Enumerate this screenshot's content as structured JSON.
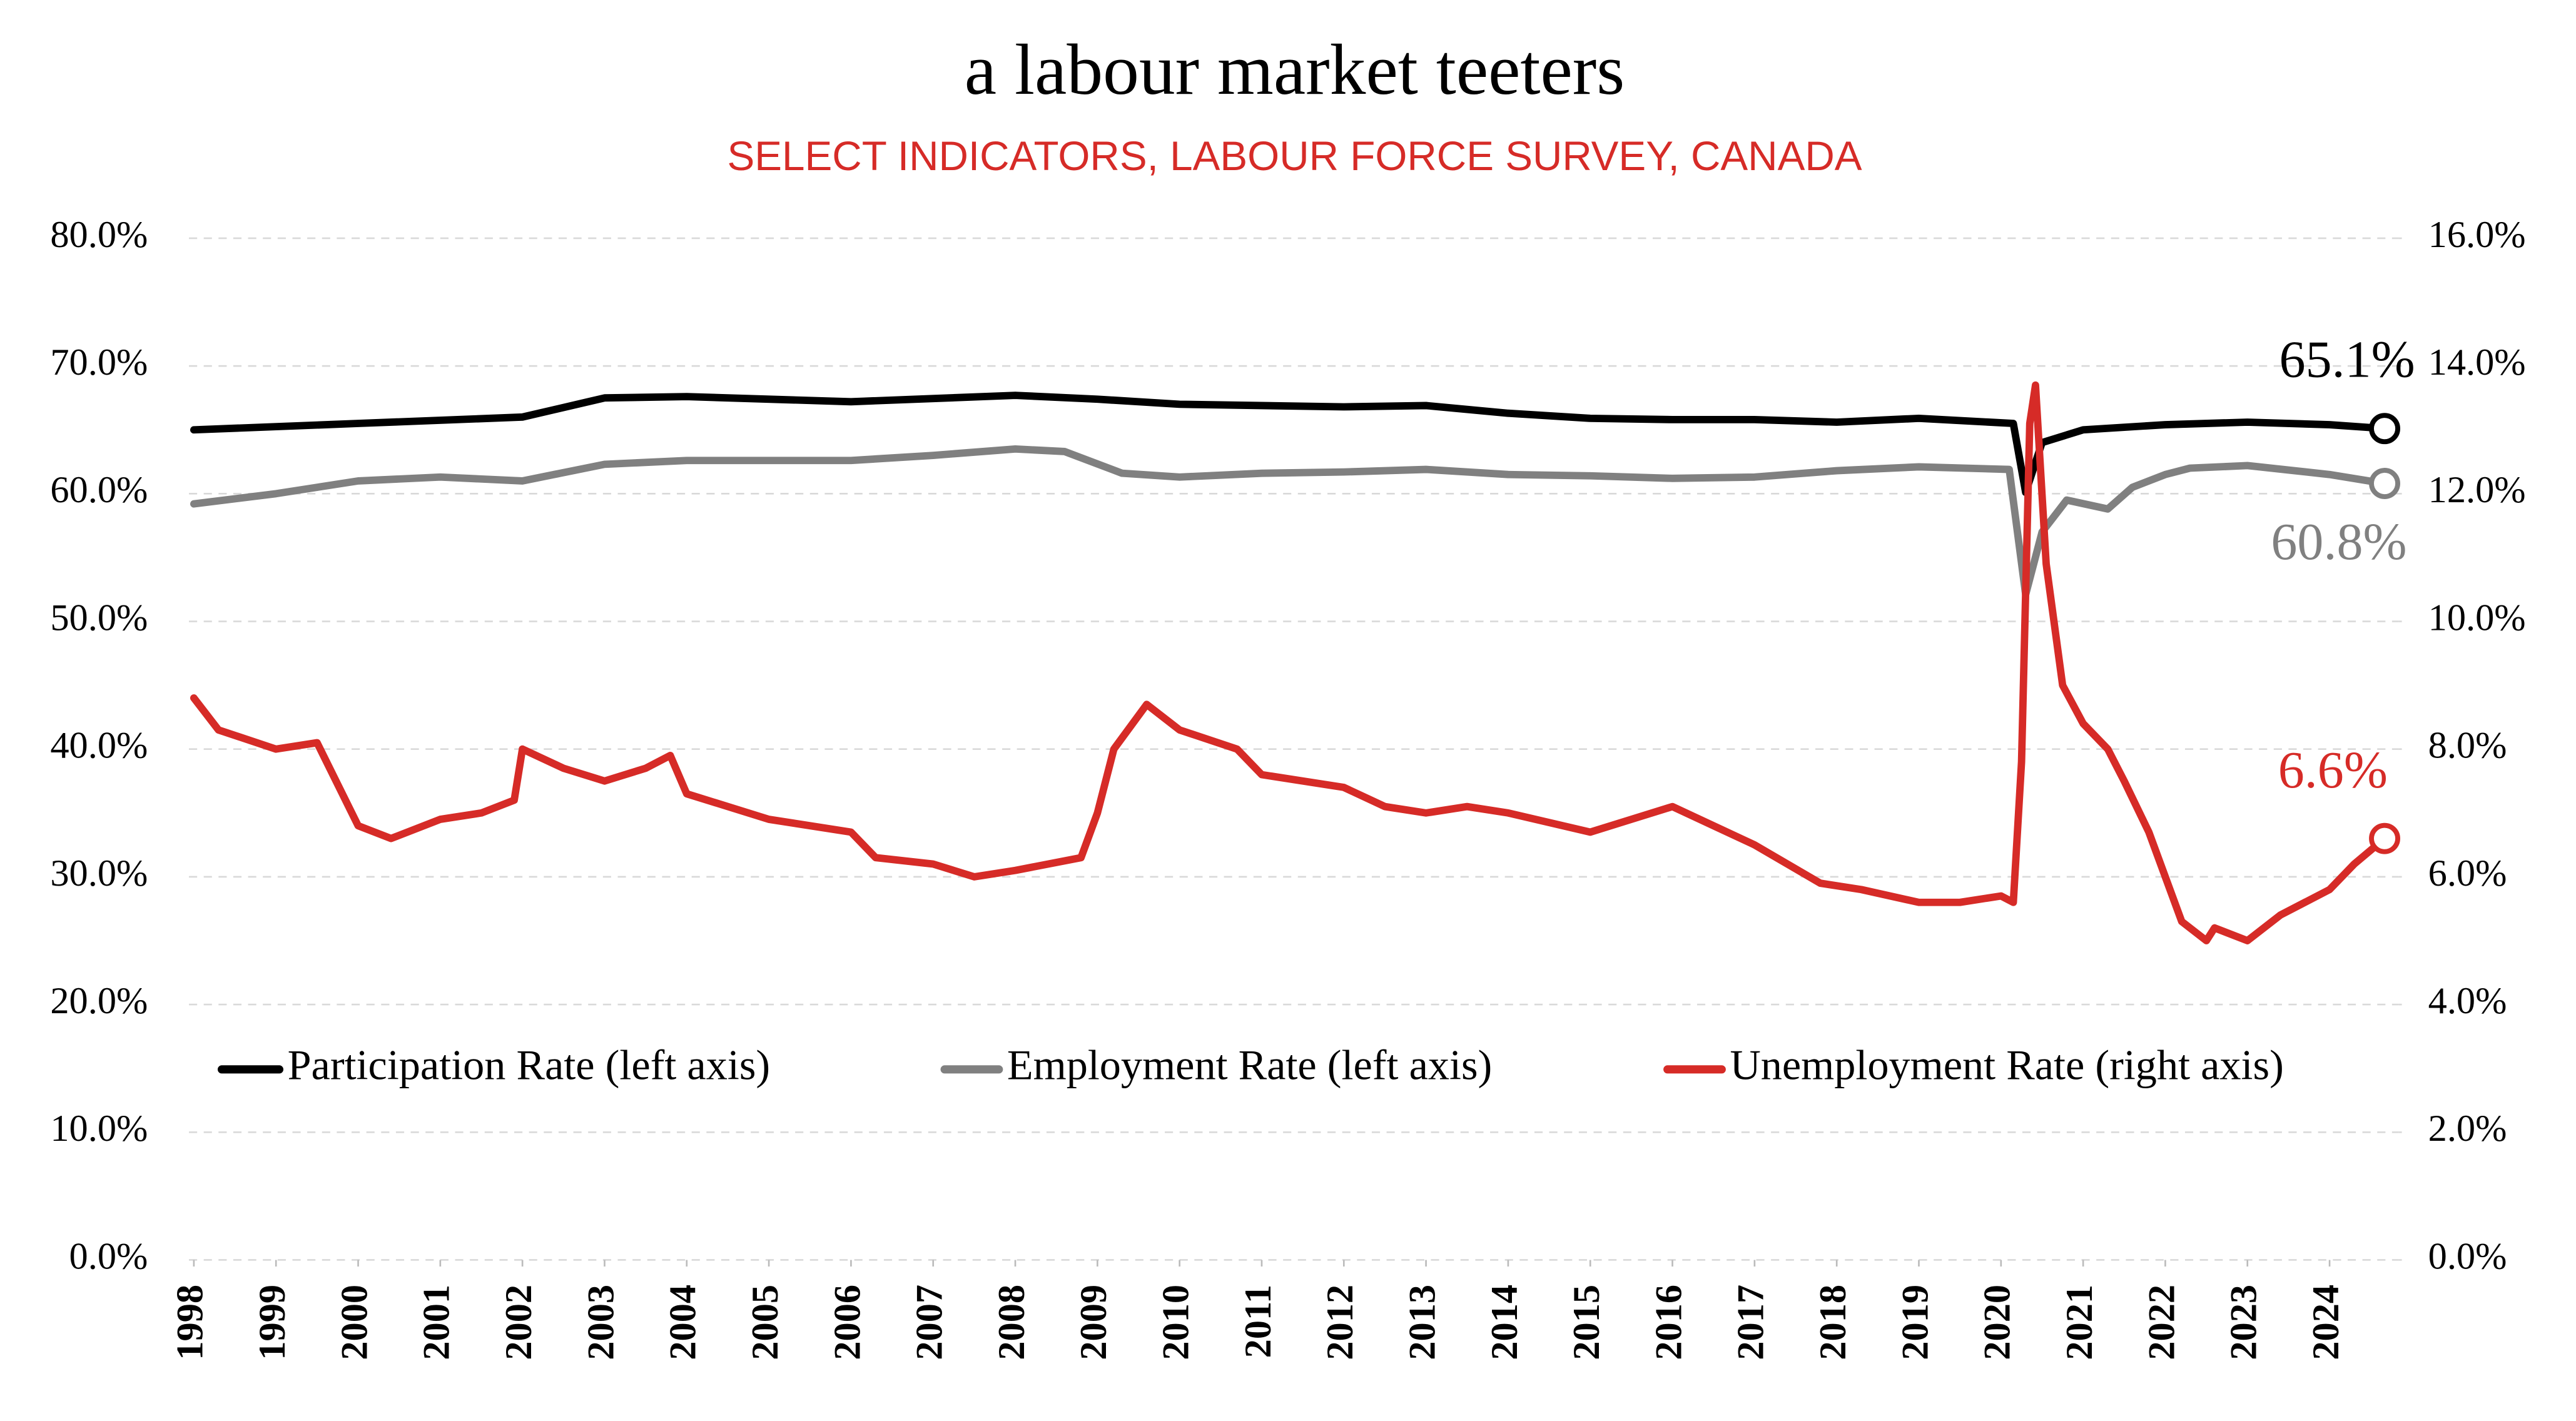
{
  "chart_data": {
    "type": "line",
    "title": "a labour market teeters",
    "subtitle": "SELECT INDICATORS, LABOUR FORCE SURVEY, CANADA",
    "xlim": [
      1998,
      2024.75
    ],
    "xticks": [
      1998,
      1999,
      2000,
      2001,
      2002,
      2003,
      2004,
      2005,
      2006,
      2007,
      2008,
      2009,
      2010,
      2011,
      2012,
      2013,
      2014,
      2015,
      2016,
      2017,
      2018,
      2019,
      2020,
      2021,
      2022,
      2023,
      2024
    ],
    "ylim": [
      0,
      80
    ],
    "yticks": [
      {
        "value": 0,
        "label": "0.0%"
      },
      {
        "value": 10,
        "label": "10.0%"
      },
      {
        "value": 20,
        "label": "20.0%"
      },
      {
        "value": 30,
        "label": "30.0%"
      },
      {
        "value": 40,
        "label": "40.0%"
      },
      {
        "value": 50,
        "label": "50.0%"
      },
      {
        "value": 60,
        "label": "60.0%"
      },
      {
        "value": 70,
        "label": "70.0%"
      },
      {
        "value": 80,
        "label": "80.0%"
      }
    ],
    "y2lim": [
      0,
      16
    ],
    "y2ticks": [
      {
        "value": 0,
        "label": "0.0%"
      },
      {
        "value": 2,
        "label": "2.0%"
      },
      {
        "value": 4,
        "label": "4.0%"
      },
      {
        "value": 6,
        "label": "6.0%"
      },
      {
        "value": 8,
        "label": "8.0%"
      },
      {
        "value": 10,
        "label": "10.0%"
      },
      {
        "value": 12,
        "label": "12.0%"
      },
      {
        "value": 14,
        "label": "14.0%"
      },
      {
        "value": 16,
        "label": "16.0%"
      }
    ],
    "grid": true,
    "series": [
      {
        "name": "Participation Rate (left axis)",
        "color": "#000000",
        "end_label": "65.1%",
        "x": [
          1998,
          2000,
          2002,
          2003,
          2004,
          2006,
          2008,
          2009,
          2010,
          2012,
          2013,
          2014,
          2015,
          2016,
          2017,
          2018,
          2019,
          2020.15,
          2020.3,
          2020.5,
          2021,
          2022,
          2023,
          2024,
          2024.67
        ],
        "values": [
          65.0,
          65.5,
          66.0,
          67.5,
          67.6,
          67.2,
          67.7,
          67.4,
          67.0,
          66.8,
          66.9,
          66.3,
          65.9,
          65.8,
          65.8,
          65.6,
          65.9,
          65.5,
          60.1,
          64.0,
          65.0,
          65.4,
          65.6,
          65.4,
          65.1
        ]
      },
      {
        "name": "Employment Rate (left axis)",
        "color": "#808080",
        "end_label": "60.8%",
        "x": [
          1998,
          1999,
          2000,
          2001,
          2002,
          2003,
          2004,
          2006,
          2007,
          2008,
          2008.6,
          2009.3,
          2010,
          2011,
          2012,
          2013,
          2014,
          2015,
          2016,
          2017,
          2018,
          2019,
          2020.1,
          2020.3,
          2020.5,
          2020.8,
          2021.3,
          2021.6,
          2022,
          2022.3,
          2023,
          2024,
          2024.67
        ],
        "values": [
          59.2,
          60.0,
          61.0,
          61.3,
          61.0,
          62.3,
          62.6,
          62.6,
          63.0,
          63.5,
          63.3,
          61.6,
          61.3,
          61.6,
          61.7,
          61.9,
          61.5,
          61.4,
          61.2,
          61.3,
          61.8,
          62.1,
          61.9,
          52.1,
          57.0,
          59.5,
          58.8,
          60.5,
          61.5,
          62.0,
          62.2,
          61.5,
          60.8
        ]
      },
      {
        "name": "Unemployment Rate (right axis)",
        "color": "#d62b27",
        "axis": "y2",
        "end_label": "6.6%",
        "x": [
          1998,
          1998.3,
          1999,
          1999.5,
          2000,
          2000.4,
          2001,
          2001.5,
          2001.9,
          2002,
          2002.5,
          2003,
          2003.5,
          2003.8,
          2004,
          2005,
          2006,
          2006.3,
          2007,
          2007.5,
          2008,
          2008.8,
          2009,
          2009.2,
          2009.6,
          2010,
          2010.7,
          2011,
          2012,
          2012.5,
          2013,
          2013.5,
          2014,
          2015,
          2015.5,
          2016,
          2016.5,
          2017,
          2017.8,
          2018.3,
          2019,
          2019.5,
          2020,
          2020.15,
          2020.25,
          2020.35,
          2020.42,
          2020.55,
          2020.75,
          2021,
          2021.3,
          2021.5,
          2021.8,
          2022,
          2022.2,
          2022.5,
          2022.6,
          2023,
          2023.4,
          2024,
          2024.3,
          2024.67
        ],
        "values": [
          8.8,
          8.3,
          8.0,
          8.1,
          6.8,
          6.6,
          6.9,
          7.0,
          7.2,
          8.0,
          7.7,
          7.5,
          7.7,
          7.9,
          7.3,
          6.9,
          6.7,
          6.3,
          6.2,
          6.0,
          6.1,
          6.3,
          7.0,
          8.0,
          8.7,
          8.3,
          8.0,
          7.6,
          7.4,
          7.1,
          7.0,
          7.1,
          7.0,
          6.7,
          6.9,
          7.1,
          6.8,
          6.5,
          5.9,
          5.8,
          5.6,
          5.6,
          5.7,
          5.6,
          7.8,
          13.1,
          13.7,
          10.9,
          9.0,
          8.4,
          8.0,
          7.5,
          6.7,
          6.0,
          5.3,
          5.0,
          5.2,
          5.0,
          5.4,
          5.8,
          6.2,
          6.6
        ]
      }
    ]
  }
}
